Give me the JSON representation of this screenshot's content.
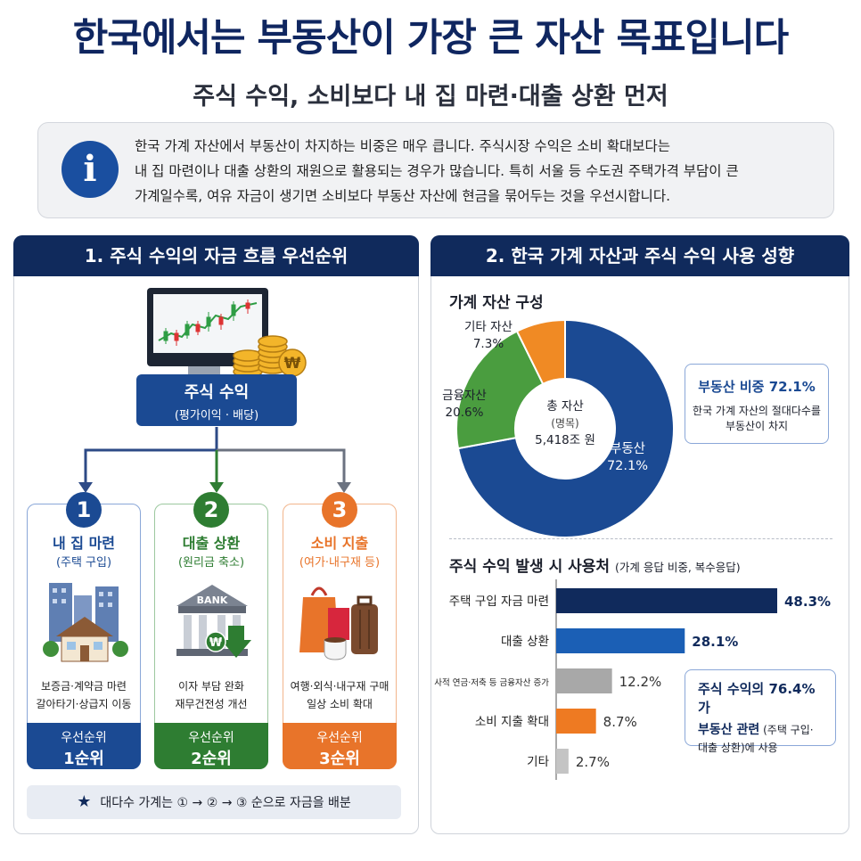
{
  "header": {
    "title": "한국에서는 부동산이 가장 큰 자산 목표입니다",
    "subtitle": "주식 수익, 소비보다 내 집 마련·대출 상환 먼저"
  },
  "info": {
    "icon": "info-icon",
    "icon_glyph": "i",
    "lines": [
      "한국 가계 자산에서 부동산이 차지하는 비중은 매우 큽니다. 주식시장 수익은 소비 확대보다는",
      "내 집 마련이나 대출 상환의 재원으로 활용되는 경우가 많습니다. 특히 서울 등 수도권 주택가격 부담이 큰",
      "가계일수록, 여유 자금이 생기면 소비보다 부동산 자산에 현금을 묶어두는 것을 우선시합니다."
    ]
  },
  "left_panel": {
    "heading": "1. 주식 수익의 자금 흐름 우선순위",
    "source": {
      "title": "주식 수익",
      "sub": "(평가이익 · 배당)"
    },
    "coin_symbol": "₩",
    "cards": [
      {
        "num": "1",
        "title": "내 집 마련",
        "sub": "(주택 구입)",
        "desc1": "보증금·계약금 마련",
        "desc2": "갈아타기·상급지 이동",
        "rank_label": "우선순위",
        "rank": "1순위",
        "color": "#1b4a93",
        "light": "#8aa7d8",
        "icon": "house-icon"
      },
      {
        "num": "2",
        "title": "대출 상환",
        "sub": "(원리금 축소)",
        "desc1": "이자 부담 완화",
        "desc2": "재무건전성 개선",
        "rank_label": "우선순위",
        "rank": "2순위",
        "color": "#2e7d32",
        "light": "#9cc89f",
        "icon": "bank-icon",
        "bank_word": "BANK"
      },
      {
        "num": "3",
        "title": "소비 지출",
        "sub": "(여가·내구재 등)",
        "desc1": "여행·외식·내구재 구매",
        "desc2": "일상 소비 확대",
        "rank_label": "우선순위",
        "rank": "3순위",
        "color": "#e8742a",
        "light": "#f2b58c",
        "icon": "shopping-icon"
      }
    ],
    "footnote": {
      "star": "★",
      "text": "대다수 가계는 ① → ② → ③ 순으로 자금을 배분"
    }
  },
  "right_panel": {
    "heading": "2. 한국 가계 자산과 주식 수익 사용 성향",
    "donut_title": "가계 자산 구성",
    "center": {
      "l1": "총 자산",
      "l2": "(명목)",
      "l3": "5,418조 원"
    },
    "callout1": {
      "title": "부동산 비중 72.1%",
      "l1": "한국 가계 자산의 절대다수를",
      "l2": "부동산이 차지"
    },
    "bar_title": "주식 수익 발생 시 사용처",
    "bar_note": "(가계 응답 비중, 복수응답)",
    "callout2": {
      "l1": "주식 수익의 76.4%가",
      "l2a": "부동산 관련",
      "l2b": " (주택 구입·",
      "l3": "대출 상환)에 사용"
    }
  },
  "chart_data": [
    {
      "type": "pie",
      "title": "가계 자산 구성",
      "categories": [
        "부동산",
        "금융자산",
        "기타 자산"
      ],
      "values": [
        72.1,
        20.6,
        7.3
      ],
      "value_labels": [
        "72.1%",
        "20.6%",
        "7.3%"
      ],
      "colors": [
        "#1b4a93",
        "#4a9d3f",
        "#f08a24"
      ]
    },
    {
      "type": "bar",
      "title": "주식 수익 발생 시 사용처",
      "categories": [
        "주택 구입 자금 마련",
        "대출 상환",
        "사적 연금·저축 등 금융자산 증가",
        "소비 지출 확대",
        "기타"
      ],
      "values": [
        48.3,
        28.1,
        12.2,
        8.7,
        2.7
      ],
      "value_labels": [
        "48.3%",
        "28.1%",
        "12.2%",
        "8.7%",
        "2.7%"
      ],
      "colors": [
        "#102a5c",
        "#1b5fb5",
        "#a8a8a8",
        "#ee7a22",
        "#c4c4c4"
      ]
    }
  ]
}
